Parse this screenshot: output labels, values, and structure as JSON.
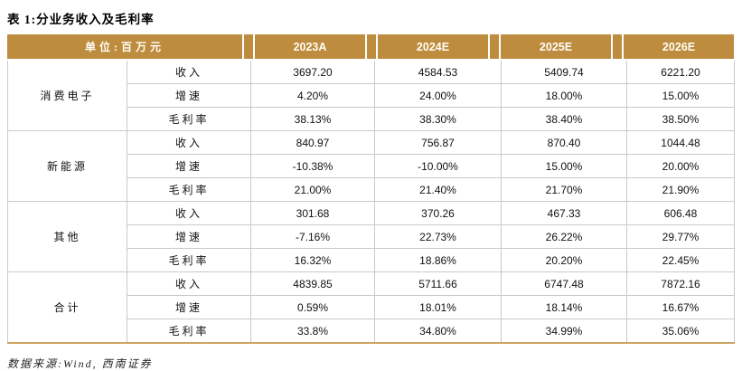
{
  "title": "表 1:分业务收入及毛利率",
  "footer": "数据来源:Wind, 西南证券",
  "colors": {
    "header_bg": "#BE8C3E",
    "header_text": "#FFFFFF",
    "grid_line": "#C9C9C9",
    "bottom_rule": "#CDA563"
  },
  "table": {
    "unit_label": "单位:百万元",
    "year_headers": [
      "2023A",
      "2024E",
      "2025E",
      "2026E"
    ],
    "groups": [
      {
        "name": "消费电子",
        "rows": [
          {
            "metric": "收入",
            "values": [
              "3697.20",
              "4584.53",
              "5409.74",
              "6221.20"
            ]
          },
          {
            "metric": "增速",
            "values": [
              "4.20%",
              "24.00%",
              "18.00%",
              "15.00%"
            ]
          },
          {
            "metric": "毛利率",
            "values": [
              "38.13%",
              "38.30%",
              "38.40%",
              "38.50%"
            ]
          }
        ]
      },
      {
        "name": "新能源",
        "rows": [
          {
            "metric": "收入",
            "values": [
              "840.97",
              "756.87",
              "870.40",
              "1044.48"
            ]
          },
          {
            "metric": "增速",
            "values": [
              "-10.38%",
              "-10.00%",
              "15.00%",
              "20.00%"
            ]
          },
          {
            "metric": "毛利率",
            "values": [
              "21.00%",
              "21.40%",
              "21.70%",
              "21.90%"
            ]
          }
        ]
      },
      {
        "name": "其他",
        "rows": [
          {
            "metric": "收入",
            "values": [
              "301.68",
              "370.26",
              "467.33",
              "606.48"
            ]
          },
          {
            "metric": "增速",
            "values": [
              "-7.16%",
              "22.73%",
              "26.22%",
              "29.77%"
            ]
          },
          {
            "metric": "毛利率",
            "values": [
              "16.32%",
              "18.86%",
              "20.20%",
              "22.45%"
            ]
          }
        ]
      },
      {
        "name": "合计",
        "rows": [
          {
            "metric": "收入",
            "values": [
              "4839.85",
              "5711.66",
              "6747.48",
              "7872.16"
            ]
          },
          {
            "metric": "增速",
            "values": [
              "0.59%",
              "18.01%",
              "18.14%",
              "16.67%"
            ]
          },
          {
            "metric": "毛利率",
            "values": [
              "33.8%",
              "34.80%",
              "34.99%",
              "35.06%"
            ]
          }
        ]
      }
    ]
  }
}
